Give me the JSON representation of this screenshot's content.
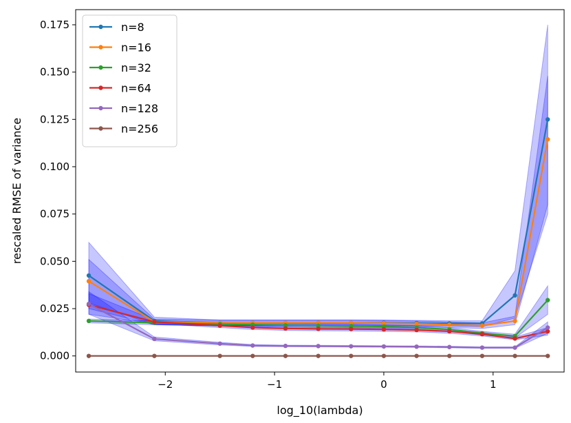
{
  "chart_data": {
    "type": "line",
    "title": "",
    "xlabel": "log_10(lambda)",
    "ylabel": "rescaled RMSE of variance",
    "xlim": [
      -2.82,
      1.65
    ],
    "ylim": [
      -0.0085,
      0.183
    ],
    "xticks": [
      -2,
      -1,
      0,
      1
    ],
    "xtick_labels": [
      "−2",
      "−1",
      "0",
      "1"
    ],
    "yticks": [
      0.0,
      0.025,
      0.05,
      0.075,
      0.1,
      0.125,
      0.15,
      0.175
    ],
    "ytick_labels": [
      "0.000",
      "0.025",
      "0.050",
      "0.075",
      "0.100",
      "0.125",
      "0.150",
      "0.175"
    ],
    "legend_position": "upper-left",
    "band_color": "#0000ff",
    "x": [
      -2.7,
      -2.1,
      -1.5,
      -1.2,
      -0.9,
      -0.6,
      -0.3,
      0.0,
      0.3,
      0.6,
      0.9,
      1.2,
      1.5
    ],
    "series": [
      {
        "name": "n=8",
        "color": "#1f77b4",
        "values": [
          0.0425,
          0.0185,
          0.0175,
          0.0175,
          0.0175,
          0.0175,
          0.0175,
          0.0175,
          0.0173,
          0.0172,
          0.0172,
          0.032,
          0.125
        ],
        "lower": [
          0.025,
          0.0165,
          0.016,
          0.016,
          0.016,
          0.016,
          0.016,
          0.016,
          0.016,
          0.0158,
          0.0155,
          0.02,
          0.075
        ],
        "upper": [
          0.06,
          0.0205,
          0.019,
          0.019,
          0.019,
          0.019,
          0.019,
          0.019,
          0.0188,
          0.0186,
          0.0186,
          0.045,
          0.175
        ]
      },
      {
        "name": "n=16",
        "color": "#ff7f0e",
        "values": [
          0.0395,
          0.018,
          0.0175,
          0.0175,
          0.0175,
          0.0175,
          0.0175,
          0.0173,
          0.017,
          0.0165,
          0.016,
          0.0185,
          0.1145
        ],
        "lower": [
          0.028,
          0.0165,
          0.016,
          0.016,
          0.016,
          0.016,
          0.016,
          0.0158,
          0.0155,
          0.015,
          0.0145,
          0.0165,
          0.08
        ],
        "upper": [
          0.051,
          0.0195,
          0.019,
          0.019,
          0.019,
          0.019,
          0.019,
          0.0188,
          0.0185,
          0.018,
          0.0175,
          0.021,
          0.148
        ]
      },
      {
        "name": "n=32",
        "color": "#2ca02c",
        "values": [
          0.0185,
          0.0175,
          0.0168,
          0.0165,
          0.0162,
          0.016,
          0.0158,
          0.0155,
          0.015,
          0.014,
          0.012,
          0.0105,
          0.0295
        ],
        "lower": [
          0.0175,
          0.0165,
          0.0158,
          0.0155,
          0.0152,
          0.015,
          0.0148,
          0.0145,
          0.014,
          0.013,
          0.011,
          0.0095,
          0.022
        ],
        "upper": [
          0.0195,
          0.0185,
          0.0178,
          0.0175,
          0.0172,
          0.017,
          0.0168,
          0.0165,
          0.016,
          0.015,
          0.013,
          0.0115,
          0.037
        ]
      },
      {
        "name": "n=64",
        "color": "#d62728",
        "values": [
          0.027,
          0.018,
          0.016,
          0.015,
          0.0145,
          0.0143,
          0.0142,
          0.014,
          0.0137,
          0.013,
          0.0115,
          0.0092,
          0.013
        ],
        "lower": [
          0.022,
          0.017,
          0.015,
          0.014,
          0.0135,
          0.0133,
          0.0132,
          0.013,
          0.0127,
          0.012,
          0.0105,
          0.0085,
          0.011
        ],
        "upper": [
          0.033,
          0.019,
          0.017,
          0.016,
          0.0155,
          0.0153,
          0.0152,
          0.015,
          0.0147,
          0.014,
          0.0125,
          0.01,
          0.015
        ]
      },
      {
        "name": "n=128",
        "color": "#9467bd",
        "values": [
          0.0275,
          0.009,
          0.0065,
          0.0055,
          0.0053,
          0.0052,
          0.0051,
          0.005,
          0.0049,
          0.0047,
          0.0044,
          0.0044,
          0.015
        ],
        "lower": [
          0.022,
          0.008,
          0.0058,
          0.005,
          0.0049,
          0.0048,
          0.0047,
          0.0046,
          0.0045,
          0.0043,
          0.004,
          0.004,
          0.012
        ],
        "upper": [
          0.034,
          0.01,
          0.0072,
          0.006,
          0.0057,
          0.0056,
          0.0055,
          0.0054,
          0.0053,
          0.0051,
          0.0048,
          0.0048,
          0.018
        ]
      },
      {
        "name": "n=256",
        "color": "#8c564b",
        "values": [
          0.0,
          0.0,
          0.0,
          0.0,
          0.0,
          0.0,
          0.0,
          0.0,
          0.0,
          0.0,
          0.0,
          0.0,
          0.0
        ],
        "lower": [
          0.0,
          0.0,
          0.0,
          0.0,
          0.0,
          0.0,
          0.0,
          0.0,
          0.0,
          0.0,
          0.0,
          0.0,
          0.0
        ],
        "upper": [
          0.0,
          0.0,
          0.0,
          0.0,
          0.0,
          0.0,
          0.0,
          0.0,
          0.0,
          0.0,
          0.0,
          0.0,
          0.0
        ]
      }
    ]
  }
}
